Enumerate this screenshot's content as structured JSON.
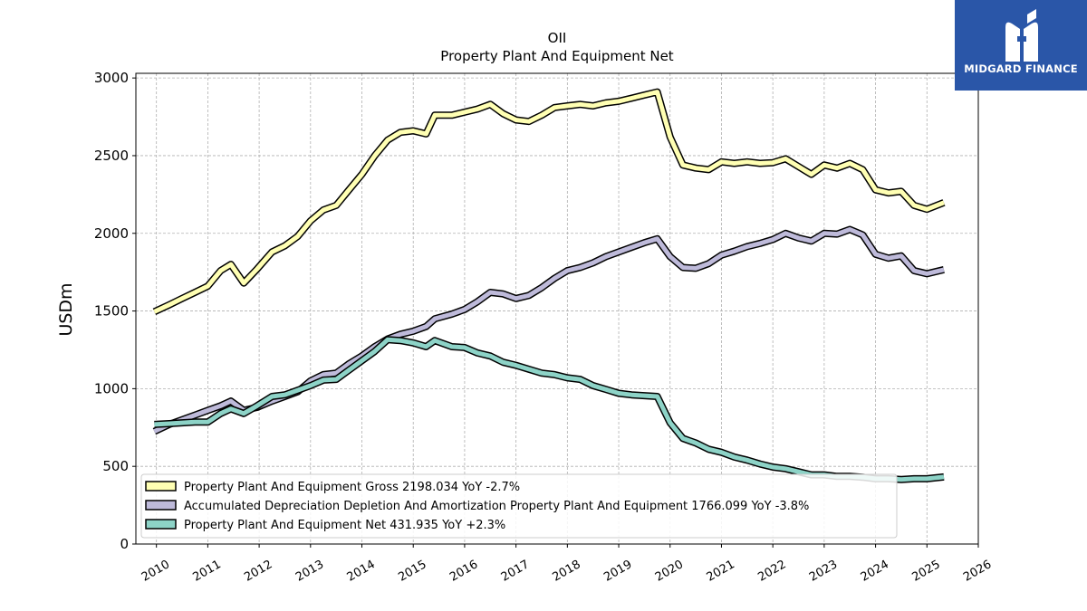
{
  "chart_data": {
    "type": "line",
    "title": "OII",
    "subtitle": "Property Plant And Equipment Net",
    "ylabel": "USDm",
    "xlabel": "",
    "xlim": [
      2009.6,
      2026
    ],
    "ylim": [
      0,
      3030
    ],
    "x_ticks": [
      "2010",
      "2011",
      "2012",
      "2013",
      "2014",
      "2015",
      "2016",
      "2017",
      "2018",
      "2019",
      "2020",
      "2021",
      "2022",
      "2023",
      "2024",
      "2025",
      "2026"
    ],
    "y_ticks": [
      0,
      500,
      1000,
      1500,
      2000,
      2500,
      3000
    ],
    "grid": true,
    "legend_position": "lower-left",
    "series": [
      {
        "name": "Property Plant And Equipment Gross",
        "legend_label": "Property Plant And Equipment Gross  2198.034 YoY -2.7%",
        "color": "#ffffb3",
        "points": [
          [
            2009.96,
            1495
          ],
          [
            2010.25,
            1540
          ],
          [
            2010.5,
            1580
          ],
          [
            2010.75,
            1620
          ],
          [
            2011.0,
            1660
          ],
          [
            2011.25,
            1760
          ],
          [
            2011.45,
            1800
          ],
          [
            2011.7,
            1680
          ],
          [
            2011.96,
            1770
          ],
          [
            2012.25,
            1880
          ],
          [
            2012.5,
            1920
          ],
          [
            2012.75,
            1980
          ],
          [
            2013.0,
            2080
          ],
          [
            2013.25,
            2150
          ],
          [
            2013.5,
            2180
          ],
          [
            2013.75,
            2280
          ],
          [
            2014.0,
            2380
          ],
          [
            2014.25,
            2500
          ],
          [
            2014.5,
            2600
          ],
          [
            2014.75,
            2650
          ],
          [
            2015.0,
            2660
          ],
          [
            2015.25,
            2640
          ],
          [
            2015.42,
            2760
          ],
          [
            2015.75,
            2760
          ],
          [
            2016.0,
            2780
          ],
          [
            2016.25,
            2800
          ],
          [
            2016.5,
            2830
          ],
          [
            2016.75,
            2770
          ],
          [
            2017.0,
            2730
          ],
          [
            2017.25,
            2720
          ],
          [
            2017.5,
            2760
          ],
          [
            2017.75,
            2810
          ],
          [
            2018.0,
            2820
          ],
          [
            2018.25,
            2830
          ],
          [
            2018.5,
            2820
          ],
          [
            2018.75,
            2840
          ],
          [
            2019.0,
            2850
          ],
          [
            2019.25,
            2870
          ],
          [
            2019.5,
            2890
          ],
          [
            2019.75,
            2910
          ],
          [
            2020.0,
            2620
          ],
          [
            2020.25,
            2440
          ],
          [
            2020.5,
            2420
          ],
          [
            2020.75,
            2410
          ],
          [
            2021.0,
            2460
          ],
          [
            2021.25,
            2450
          ],
          [
            2021.5,
            2460
          ],
          [
            2021.75,
            2450
          ],
          [
            2022.0,
            2455
          ],
          [
            2022.25,
            2480
          ],
          [
            2022.5,
            2430
          ],
          [
            2022.75,
            2380
          ],
          [
            2023.0,
            2440
          ],
          [
            2023.25,
            2420
          ],
          [
            2023.5,
            2450
          ],
          [
            2023.75,
            2410
          ],
          [
            2024.0,
            2280
          ],
          [
            2024.25,
            2260
          ],
          [
            2024.5,
            2270
          ],
          [
            2024.75,
            2180
          ],
          [
            2025.0,
            2155
          ],
          [
            2025.33,
            2198.034
          ]
        ]
      },
      {
        "name": "Accumulated Depreciation Depletion And Amortization Property Plant And Equipment",
        "legend_label": "Accumulated Depreciation Depletion And Amortization Property Plant And Equipment  1766.099 YoY -3.8%",
        "color": "#bebada",
        "points": [
          [
            2009.96,
            725
          ],
          [
            2010.25,
            770
          ],
          [
            2010.5,
            800
          ],
          [
            2010.75,
            830
          ],
          [
            2011.0,
            860
          ],
          [
            2011.25,
            890
          ],
          [
            2011.45,
            920
          ],
          [
            2011.7,
            860
          ],
          [
            2011.96,
            880
          ],
          [
            2012.25,
            920
          ],
          [
            2012.5,
            950
          ],
          [
            2012.75,
            980
          ],
          [
            2013.0,
            1050
          ],
          [
            2013.25,
            1090
          ],
          [
            2013.5,
            1100
          ],
          [
            2013.75,
            1160
          ],
          [
            2014.0,
            1210
          ],
          [
            2014.25,
            1270
          ],
          [
            2014.5,
            1320
          ],
          [
            2014.75,
            1350
          ],
          [
            2015.0,
            1370
          ],
          [
            2015.25,
            1400
          ],
          [
            2015.42,
            1450
          ],
          [
            2015.75,
            1480
          ],
          [
            2016.0,
            1510
          ],
          [
            2016.25,
            1560
          ],
          [
            2016.5,
            1620
          ],
          [
            2016.75,
            1610
          ],
          [
            2017.0,
            1580
          ],
          [
            2017.25,
            1600
          ],
          [
            2017.5,
            1650
          ],
          [
            2017.75,
            1710
          ],
          [
            2018.0,
            1760
          ],
          [
            2018.25,
            1780
          ],
          [
            2018.5,
            1810
          ],
          [
            2018.75,
            1850
          ],
          [
            2019.0,
            1880
          ],
          [
            2019.25,
            1910
          ],
          [
            2019.5,
            1940
          ],
          [
            2019.75,
            1965
          ],
          [
            2020.0,
            1850
          ],
          [
            2020.25,
            1780
          ],
          [
            2020.5,
            1775
          ],
          [
            2020.75,
            1805
          ],
          [
            2021.0,
            1860
          ],
          [
            2021.25,
            1885
          ],
          [
            2021.5,
            1915
          ],
          [
            2021.75,
            1935
          ],
          [
            2022.0,
            1960
          ],
          [
            2022.25,
            2000
          ],
          [
            2022.5,
            1970
          ],
          [
            2022.75,
            1950
          ],
          [
            2023.0,
            2000
          ],
          [
            2023.25,
            1995
          ],
          [
            2023.5,
            2025
          ],
          [
            2023.75,
            1990
          ],
          [
            2024.0,
            1865
          ],
          [
            2024.25,
            1840
          ],
          [
            2024.5,
            1855
          ],
          [
            2024.75,
            1760
          ],
          [
            2025.0,
            1740
          ],
          [
            2025.33,
            1766.099
          ]
        ]
      },
      {
        "name": "Property Plant And Equipment Net",
        "legend_label": "Property Plant And Equipment Net  431.935 YoY +2.3%",
        "color": "#8dd3c7",
        "points": [
          [
            2009.96,
            770
          ],
          [
            2010.25,
            775
          ],
          [
            2010.5,
            780
          ],
          [
            2010.75,
            785
          ],
          [
            2011.0,
            785
          ],
          [
            2011.25,
            840
          ],
          [
            2011.45,
            870
          ],
          [
            2011.7,
            840
          ],
          [
            2011.96,
            890
          ],
          [
            2012.25,
            950
          ],
          [
            2012.5,
            960
          ],
          [
            2012.75,
            990
          ],
          [
            2013.0,
            1020
          ],
          [
            2013.25,
            1055
          ],
          [
            2013.5,
            1060
          ],
          [
            2013.75,
            1120
          ],
          [
            2014.0,
            1180
          ],
          [
            2014.25,
            1240
          ],
          [
            2014.5,
            1315
          ],
          [
            2014.75,
            1310
          ],
          [
            2015.0,
            1295
          ],
          [
            2015.25,
            1270
          ],
          [
            2015.42,
            1310
          ],
          [
            2015.75,
            1270
          ],
          [
            2016.0,
            1265
          ],
          [
            2016.25,
            1230
          ],
          [
            2016.5,
            1210
          ],
          [
            2016.75,
            1170
          ],
          [
            2017.0,
            1150
          ],
          [
            2017.25,
            1125
          ],
          [
            2017.5,
            1100
          ],
          [
            2017.75,
            1090
          ],
          [
            2018.0,
            1070
          ],
          [
            2018.25,
            1060
          ],
          [
            2018.5,
            1020
          ],
          [
            2018.75,
            995
          ],
          [
            2019.0,
            970
          ],
          [
            2019.25,
            960
          ],
          [
            2019.5,
            955
          ],
          [
            2019.75,
            950
          ],
          [
            2020.0,
            780
          ],
          [
            2020.25,
            680
          ],
          [
            2020.5,
            650
          ],
          [
            2020.75,
            610
          ],
          [
            2021.0,
            590
          ],
          [
            2021.25,
            560
          ],
          [
            2021.5,
            540
          ],
          [
            2021.75,
            515
          ],
          [
            2022.0,
            495
          ],
          [
            2022.25,
            485
          ],
          [
            2022.5,
            465
          ],
          [
            2022.75,
            445
          ],
          [
            2023.0,
            445
          ],
          [
            2023.25,
            435
          ],
          [
            2023.5,
            435
          ],
          [
            2023.75,
            430
          ],
          [
            2024.0,
            420
          ],
          [
            2024.25,
            420
          ],
          [
            2024.5,
            415
          ],
          [
            2024.75,
            420
          ],
          [
            2025.0,
            420
          ],
          [
            2025.33,
            431.935
          ]
        ]
      }
    ]
  },
  "logo": {
    "text": "MIDGARD FINANCE",
    "bg_color": "#2a56a8"
  }
}
